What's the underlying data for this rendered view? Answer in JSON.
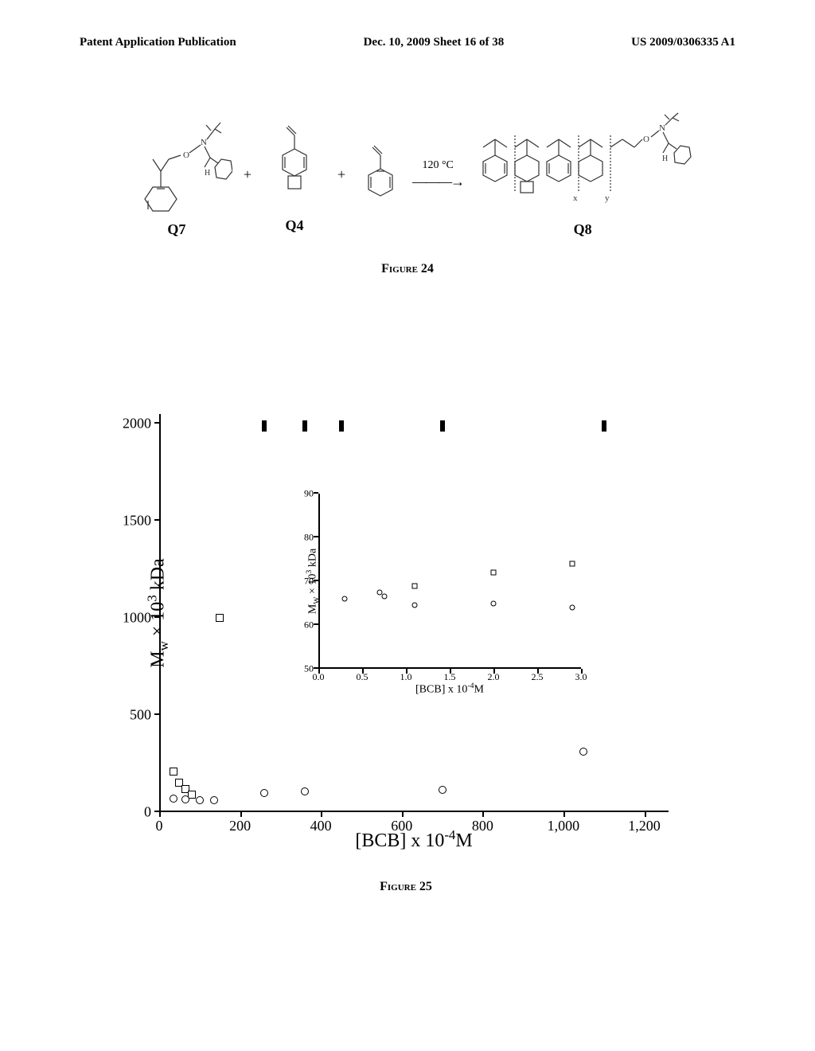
{
  "header": {
    "left": "Patent Application Publication",
    "center": "Dec. 10, 2009  Sheet 16 of 38",
    "right": "US 2009/0306335 A1"
  },
  "figure24": {
    "caption": "Figure 24",
    "reactants": [
      "Q7",
      "Q4"
    ],
    "arrow_condition": "120 °C",
    "product": "Q8",
    "plus": "+",
    "styrene_label": ""
  },
  "figure25": {
    "caption": "Figure 25",
    "main_chart": {
      "type": "scatter",
      "xlabel": "[BCB] x 10⁻⁴M",
      "ylabel": "Mw × 10³ kDa",
      "xlim": [
        0,
        1260
      ],
      "ylim": [
        0,
        2050
      ],
      "xticks": [
        0,
        200,
        400,
        600,
        800,
        1000,
        1200
      ],
      "xtick_labels": [
        "0",
        "200",
        "400",
        "600",
        "800",
        "1,000",
        "1,200"
      ],
      "yticks": [
        0,
        500,
        1000,
        1500,
        2000
      ],
      "ytick_labels": [
        "0",
        "500",
        "1000",
        "1500",
        "2000"
      ],
      "bar_markers": [
        {
          "x": 260,
          "y": 1990
        },
        {
          "x": 360,
          "y": 1990
        },
        {
          "x": 450,
          "y": 1990
        },
        {
          "x": 700,
          "y": 1990
        },
        {
          "x": 1100,
          "y": 1990
        }
      ],
      "square_markers": [
        {
          "x": 35,
          "y": 210
        },
        {
          "x": 50,
          "y": 150
        },
        {
          "x": 65,
          "y": 120
        },
        {
          "x": 80,
          "y": 90
        },
        {
          "x": 150,
          "y": 1000
        }
      ],
      "circle_markers": [
        {
          "x": 35,
          "y": 70
        },
        {
          "x": 65,
          "y": 65
        },
        {
          "x": 100,
          "y": 62
        },
        {
          "x": 135,
          "y": 60
        },
        {
          "x": 260,
          "y": 100
        },
        {
          "x": 360,
          "y": 105
        },
        {
          "x": 700,
          "y": 115
        },
        {
          "x": 1050,
          "y": 310
        }
      ],
      "background_color": "#ffffff",
      "axis_color": "#000000",
      "marker_border": "#000000",
      "marker_fill": "#ffffff",
      "marker_size": 10
    },
    "inset_chart": {
      "type": "scatter",
      "xlabel": "[BCB] x 10⁻⁴M",
      "ylabel": "Mw × 10³ kDa",
      "xlim": [
        0,
        3.0
      ],
      "ylim": [
        50,
        90
      ],
      "xticks": [
        0.0,
        0.5,
        1.0,
        1.5,
        2.0,
        2.5,
        3.0
      ],
      "xtick_labels": [
        "0.0",
        "0.5",
        "1.0",
        "1.5",
        "2.0",
        "2.5",
        "3.0"
      ],
      "yticks": [
        50,
        60,
        70,
        80,
        90
      ],
      "ytick_labels": [
        "50",
        "60",
        "70",
        "80",
        "90"
      ],
      "square_markers": [
        {
          "x": 1.1,
          "y": 69
        },
        {
          "x": 2.0,
          "y": 72
        },
        {
          "x": 2.9,
          "y": 74
        }
      ],
      "circle_markers": [
        {
          "x": 0.3,
          "y": 66
        },
        {
          "x": 0.7,
          "y": 67.5
        },
        {
          "x": 0.75,
          "y": 66.5
        },
        {
          "x": 1.1,
          "y": 64.5
        },
        {
          "x": 2.0,
          "y": 65
        },
        {
          "x": 2.9,
          "y": 64
        }
      ],
      "background_color": "#ffffff",
      "axis_color": "#000000"
    }
  }
}
